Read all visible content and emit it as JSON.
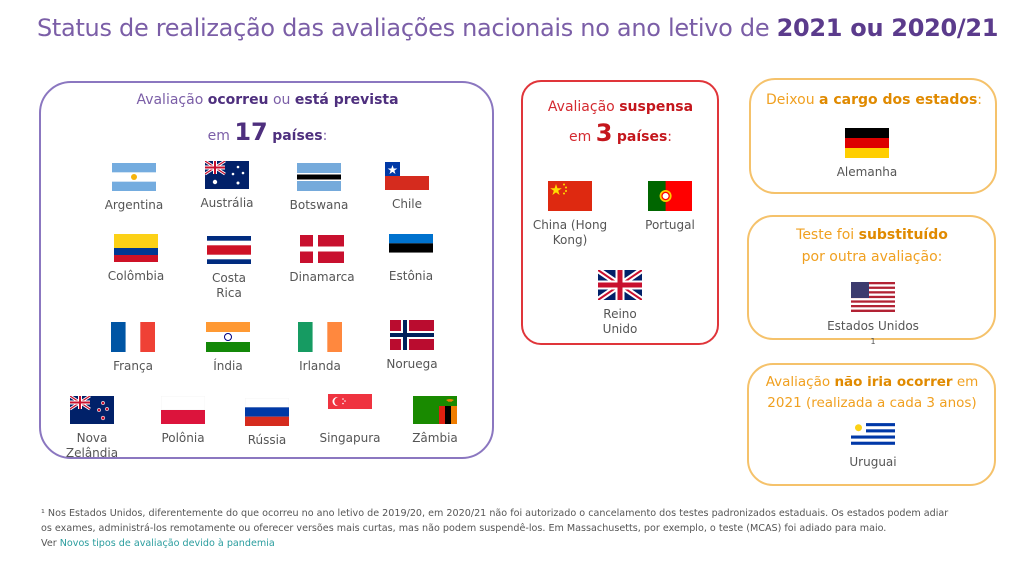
{
  "title": {
    "prefix": "Status de realização das avaliações nacionais no ano letivo de ",
    "bold": "2021 ou 2020/21"
  },
  "occurred": {
    "line1_a": "Avaliação ",
    "line1_b": "ocorreu",
    "line1_c": " ou ",
    "line1_d": "está prevista",
    "line2_a": "em ",
    "line2_b": "17",
    "line2_c": "países",
    "line2_d": ":",
    "countries": [
      "Argentina",
      "Austrália",
      "Botswana",
      "Chile",
      "Colômbia",
      "Costa Rica",
      "Dinamarca",
      "Estônia",
      "França",
      "Índia",
      "Irlanda",
      "Noruega",
      "Nova Zelândia",
      "Polônia",
      "Rússia",
      "Singapura",
      "Zâmbia"
    ]
  },
  "suspended": {
    "line1_a": "Avaliação ",
    "line1_b": "suspensa",
    "line2_a": "em ",
    "line2_b": "3",
    "line2_c": "países",
    "line2_d": ":",
    "countries": [
      "China (Hong Kong)",
      "Portugal",
      "Reino Unido"
    ]
  },
  "states": {
    "line1_a": "Deixou ",
    "line1_b": "a cargo dos estados",
    "line1_c": ":",
    "country": "Alemanha"
  },
  "replaced": {
    "line1_a": "Teste foi ",
    "line1_b": "substituído",
    "line2": "por outra avaliação:",
    "country": "Estados Unidos",
    "sup": "1"
  },
  "notscheduled": {
    "line1_a": "Avaliação ",
    "line1_b": "não iria ocorrer",
    "line1_c": " em",
    "line2": "2021 (realizada a cada 3 anos)",
    "country": "Uruguai"
  },
  "footnote": {
    "line1": "¹ Nos Estados Unidos, diferentemente do que ocorreu no ano letivo de 2019/20, em 2020/21 não foi autorizado o cancelamento dos testes padronizados estaduais. Os estados podem adiar",
    "line2": "os exames, administrá-los remotamente ou oferecer versões mais curtas, mas não podem suspendê-los. Em Massachusetts, por exemplo, o teste (MCAS) foi adiado para maio.",
    "line3_a": "Ver ",
    "line3_link": "Novos tipos de avaliação devido à pandemia"
  },
  "colors": {
    "purple": "#7b5ea7",
    "red": "#e0353a",
    "orange": "#f5c26b",
    "link": "#2a9d9e"
  }
}
